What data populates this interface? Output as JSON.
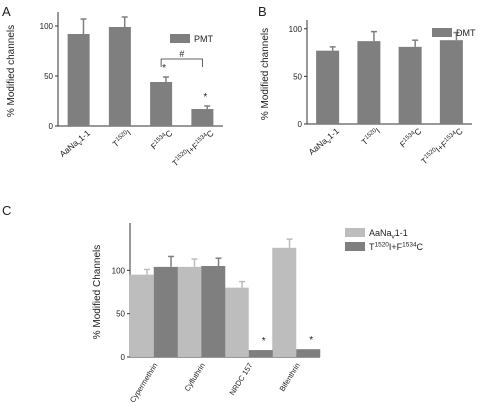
{
  "colors": {
    "bar_dark": "#7f7f7f",
    "bar_light": "#bdbdbd",
    "axis": "#333333",
    "text": "#222222"
  },
  "chart_data": [
    {
      "panel": "A",
      "type": "bar",
      "categories": [
        "AaNa<sub>v</sub>1-1",
        "T<sup>1520</sup>I",
        "F<sup>1534</sup>C",
        "T<sup>1520</sup>I+F<sup>1534</sup>C"
      ],
      "series": [
        {
          "name": "PMT",
          "values": [
            92,
            99,
            44,
            17
          ],
          "errors": [
            15,
            10,
            5,
            3
          ]
        }
      ],
      "ylabel": "% Modified channels",
      "ylim": [
        0,
        110
      ],
      "yticks": [
        0,
        50,
        100
      ],
      "grid": false,
      "legend": "top-right",
      "annotations": [
        {
          "bar": 2,
          "text": "*"
        },
        {
          "bar": 3,
          "text": "*"
        },
        {
          "bracket": [
            2,
            3
          ],
          "text": "#"
        }
      ]
    },
    {
      "panel": "B",
      "type": "bar",
      "categories": [
        "AaNa<sub>v</sub>1-1",
        "T<sup>1520</sup>I",
        "F<sup>1534</sup>C",
        "T<sup>1520</sup>I+F<sup>1534</sup>C"
      ],
      "series": [
        {
          "name": "DMT",
          "values": [
            77,
            87,
            81,
            88
          ],
          "errors": [
            4,
            10,
            7,
            8
          ]
        }
      ],
      "ylabel": "% Modified channels",
      "ylim": [
        0,
        105
      ],
      "yticks": [
        0,
        50,
        100
      ],
      "grid": false,
      "legend": "top-right",
      "annotations": []
    },
    {
      "panel": "C",
      "type": "bar",
      "categories": [
        "Cypermethrin",
        "Cyfluthrin",
        "NRDC 157",
        "Bifenthrin"
      ],
      "series": [
        {
          "name": "AaNa<sub>v</sub>1-1",
          "values": [
            95,
            104,
            80,
            126
          ],
          "errors": [
            6,
            9,
            7,
            10
          ]
        },
        {
          "name": "T<sup>1520</sup>I+F<sup>1534</sup>C",
          "values": [
            104,
            105,
            8,
            9
          ],
          "errors": [
            12,
            9,
            0,
            0
          ]
        }
      ],
      "ylabel": "% Modified Channels",
      "ylim": [
        0,
        150
      ],
      "yticks": [
        0,
        50,
        100
      ],
      "grid": false,
      "legend": "top-right",
      "annotations": [
        {
          "group": 2,
          "series": 1,
          "text": "*"
        },
        {
          "group": 3,
          "series": 1,
          "text": "*"
        }
      ]
    }
  ],
  "panel_labels": [
    "A",
    "B",
    "C"
  ]
}
